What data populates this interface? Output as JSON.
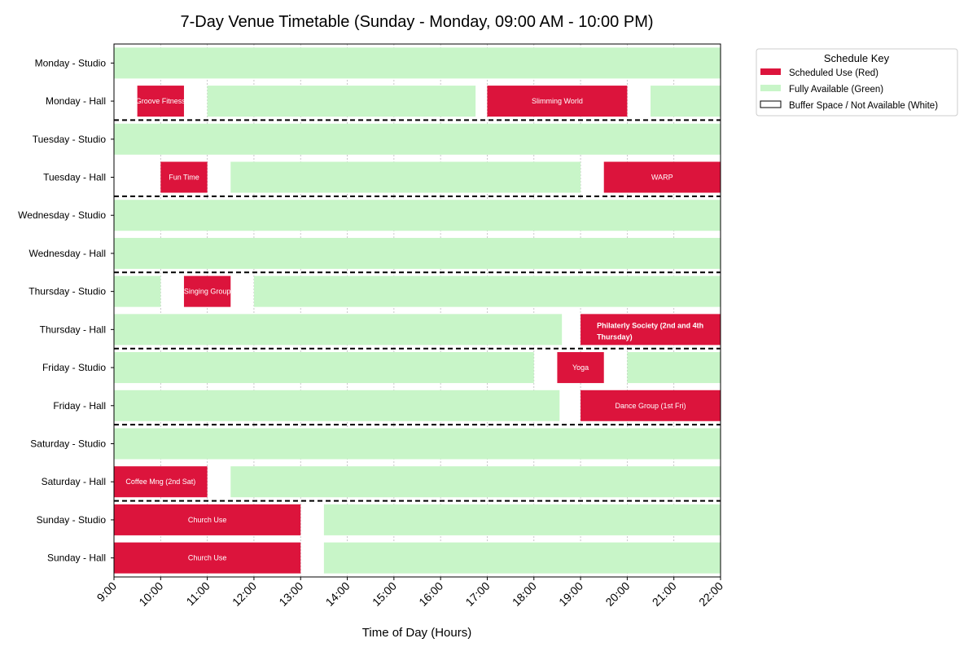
{
  "chart_data": {
    "type": "gantt",
    "title": "7-Day Venue Timetable (Sunday - Monday, 09:00 AM - 10:00 PM)",
    "xlabel": "Time of Day (Hours)",
    "xlim": [
      9,
      22
    ],
    "x_ticks": [
      "9:00",
      "10:00",
      "11:00",
      "12:00",
      "13:00",
      "14:00",
      "15:00",
      "16:00",
      "17:00",
      "18:00",
      "19:00",
      "20:00",
      "21:00",
      "22:00"
    ],
    "grid": "vertical dotted",
    "colors": {
      "scheduled": "#dc143c",
      "available": "#c8f5c8",
      "buffer": "#ffffff"
    },
    "legend": {
      "title": "Schedule Key",
      "placement": "outside top-right",
      "items": [
        {
          "label": "Scheduled Use (Red)",
          "kind": "scheduled"
        },
        {
          "label": "Fully Available (Green)",
          "kind": "available"
        },
        {
          "label": "Buffer Space / Not Available (White)",
          "kind": "buffer"
        }
      ]
    },
    "rows": [
      {
        "label": "Monday - Studio",
        "blocks": [
          {
            "start": 9,
            "end": 22,
            "kind": "available"
          }
        ]
      },
      {
        "label": "Monday - Hall",
        "blocks": [
          {
            "start": 9.5,
            "end": 10.5,
            "kind": "scheduled",
            "text": "Groove Fitness"
          },
          {
            "start": 11,
            "end": 16.75,
            "kind": "available"
          },
          {
            "start": 17,
            "end": 20,
            "kind": "scheduled",
            "text": "Slimming World"
          },
          {
            "start": 20.5,
            "end": 22,
            "kind": "available"
          }
        ]
      },
      {
        "label": "Tuesday - Studio",
        "blocks": [
          {
            "start": 9,
            "end": 22,
            "kind": "available"
          }
        ]
      },
      {
        "label": "Tuesday - Hall",
        "blocks": [
          {
            "start": 10,
            "end": 11,
            "kind": "scheduled",
            "text": "Fun Time"
          },
          {
            "start": 11.5,
            "end": 19,
            "kind": "available"
          },
          {
            "start": 19.5,
            "end": 22,
            "kind": "scheduled",
            "text": "WARP"
          }
        ]
      },
      {
        "label": "Wednesday - Studio",
        "blocks": [
          {
            "start": 9,
            "end": 22,
            "kind": "available"
          }
        ]
      },
      {
        "label": "Wednesday - Hall",
        "blocks": [
          {
            "start": 9,
            "end": 22,
            "kind": "available"
          }
        ]
      },
      {
        "label": "Thursday - Studio",
        "blocks": [
          {
            "start": 9,
            "end": 10,
            "kind": "available"
          },
          {
            "start": 10.5,
            "end": 11.5,
            "kind": "scheduled",
            "text": "Singing Group"
          },
          {
            "start": 12,
            "end": 22,
            "kind": "available"
          }
        ]
      },
      {
        "label": "Thursday - Hall",
        "blocks": [
          {
            "start": 9,
            "end": 18.6,
            "kind": "available"
          },
          {
            "start": 19,
            "end": 22,
            "kind": "scheduled",
            "text": "Philaterly Society (2nd and 4th",
            "text2": "Thursday)"
          }
        ]
      },
      {
        "label": "Friday - Studio",
        "blocks": [
          {
            "start": 9,
            "end": 18,
            "kind": "available"
          },
          {
            "start": 18.5,
            "end": 19.5,
            "kind": "scheduled",
            "text": "Yoga"
          },
          {
            "start": 20,
            "end": 22,
            "kind": "available"
          }
        ]
      },
      {
        "label": "Friday - Hall",
        "blocks": [
          {
            "start": 9,
            "end": 18.55,
            "kind": "available"
          },
          {
            "start": 19,
            "end": 22,
            "kind": "scheduled",
            "text": "Dance Group (1st Fri)"
          }
        ]
      },
      {
        "label": "Saturday - Studio",
        "blocks": [
          {
            "start": 9,
            "end": 22,
            "kind": "available"
          }
        ]
      },
      {
        "label": "Saturday - Hall",
        "blocks": [
          {
            "start": 9,
            "end": 11,
            "kind": "scheduled",
            "text": "Coffee Mng (2nd Sat)"
          },
          {
            "start": 11.5,
            "end": 22,
            "kind": "available"
          }
        ]
      },
      {
        "label": "Sunday - Studio",
        "blocks": [
          {
            "start": 9,
            "end": 13,
            "kind": "scheduled",
            "text": "Church Use"
          },
          {
            "start": 13.5,
            "end": 22,
            "kind": "available"
          }
        ]
      },
      {
        "label": "Sunday - Hall",
        "blocks": [
          {
            "start": 9,
            "end": 13,
            "kind": "scheduled",
            "text": "Church Use"
          },
          {
            "start": 13.5,
            "end": 22,
            "kind": "available"
          }
        ]
      }
    ]
  }
}
